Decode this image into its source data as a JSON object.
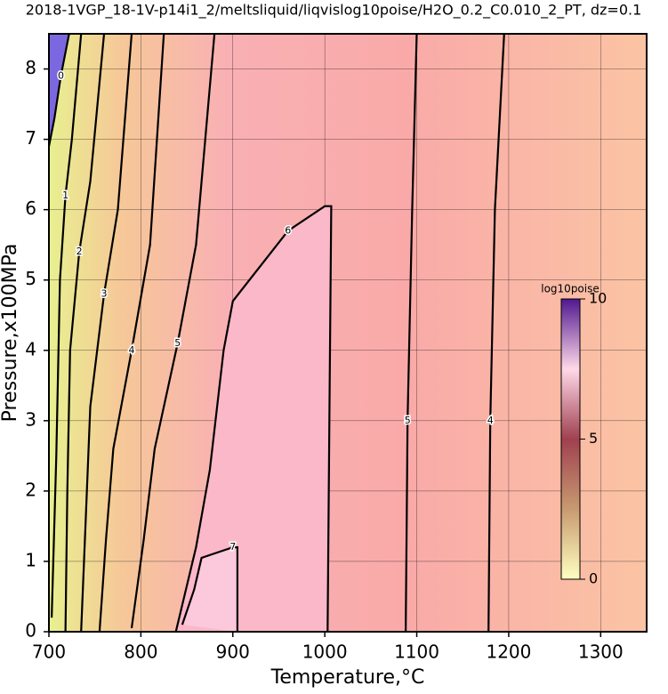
{
  "chart_data": {
    "type": "contour",
    "title": "2018-1VGP_18-1V-p14i1_2/meltsliquid/liqvislog10poise/H2O_0.2_C0.010_2_PT, dz=0.1",
    "xlabel": "Temperature,°C",
    "ylabel": "Pressure,x100MPa",
    "xlim": [
      700,
      1350
    ],
    "xticks": [
      700,
      800,
      900,
      1000,
      1100,
      1200,
      1300
    ],
    "ylim": [
      0,
      8.5
    ],
    "yticks": [
      0,
      1,
      2,
      3,
      4,
      5,
      6,
      7,
      8
    ],
    "grid": true,
    "contours": [
      {
        "level": 0,
        "fill": "#7b68e0",
        "x": [
          700,
          706,
          713,
          722
        ],
        "y": [
          6.9,
          7.3,
          7.9,
          8.5
        ]
      },
      {
        "level": 1,
        "x": [
          703,
          708,
          712,
          718,
          725,
          735
        ],
        "y": [
          0.2,
          2.5,
          5.0,
          6.2,
          7.0,
          8.5
        ]
      },
      {
        "level": 2,
        "x": [
          718,
          720,
          723,
          733,
          745,
          760
        ],
        "y": [
          0,
          2.0,
          4.0,
          5.4,
          6.4,
          8.5
        ]
      },
      {
        "level": 3,
        "x": [
          735,
          740,
          745,
          760,
          775,
          790
        ],
        "y": [
          0,
          1.6,
          3.2,
          4.8,
          6.0,
          8.5
        ]
      },
      {
        "level": 4,
        "x": [
          755,
          762,
          770,
          790,
          810,
          825
        ],
        "y": [
          0,
          1.3,
          2.6,
          4.0,
          5.5,
          8.5
        ]
      },
      {
        "level": 5,
        "x": [
          790,
          803,
          815,
          840,
          860,
          880
        ],
        "y": [
          0.05,
          1.3,
          2.6,
          4.1,
          5.5,
          8.5
        ]
      },
      {
        "level": 6,
        "fill": "#fbb8c8",
        "x": [
          838,
          860,
          875,
          890,
          900,
          960,
          1000,
          1007,
          1005,
          1003
        ],
        "y": [
          0,
          1.2,
          2.3,
          4.0,
          4.7,
          5.7,
          6.05,
          6.05,
          3.0,
          0
        ]
      },
      {
        "level": 7,
        "fill": "#fcc8dc",
        "x": [
          845,
          858,
          866,
          900,
          905,
          905
        ],
        "y": [
          0.1,
          0.6,
          1.05,
          1.2,
          1.2,
          0
        ]
      },
      {
        "level": 5,
        "x": [
          1088,
          1089,
          1090,
          1095,
          1100
        ],
        "y": [
          0,
          1.5,
          3.0,
          6.0,
          8.5
        ]
      },
      {
        "level": 4,
        "x": [
          1178,
          1179,
          1180,
          1185,
          1195
        ],
        "y": [
          0,
          1.5,
          3.0,
          6.0,
          8.5
        ]
      }
    ],
    "colorbar": {
      "label": "log10poise",
      "lim": [
        0,
        10
      ],
      "ticks": [
        0,
        5,
        10
      ]
    }
  }
}
